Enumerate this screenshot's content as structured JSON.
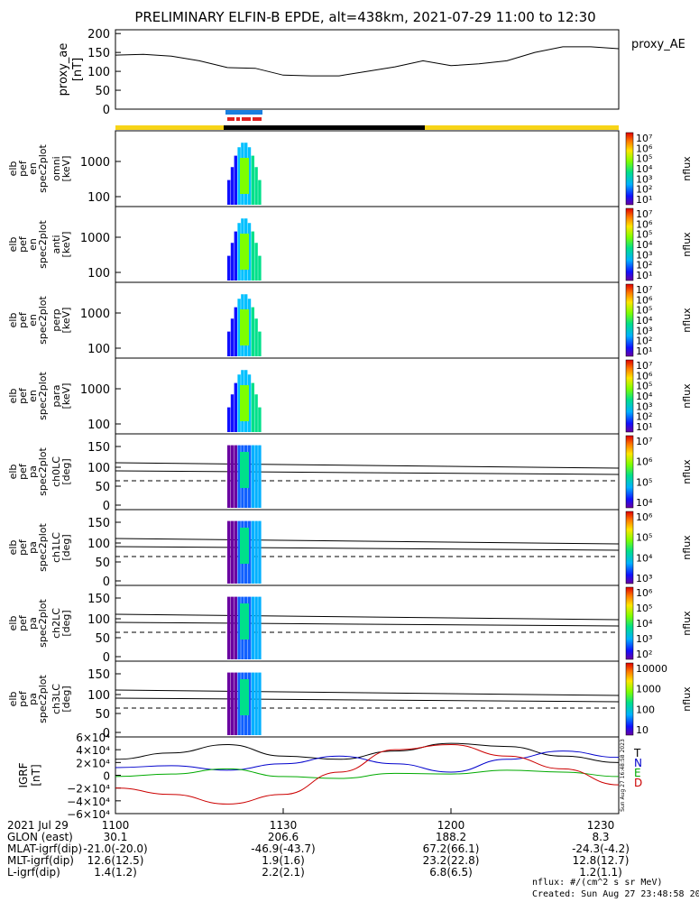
{
  "title": "PRELIMINARY ELFIN-B EPDE, alt=438km, 2021-07-29 11:00 to 12:30",
  "ae_panel": {
    "ylabel_line1": "proxy_ae",
    "ylabel_line2": "[nT]",
    "legend": "proxy_AE",
    "yticks": [
      "200",
      "150",
      "100",
      "50",
      "0"
    ],
    "ylim": [
      0,
      210
    ],
    "color": "#000000"
  },
  "chart_data": [
    {
      "type": "line",
      "title": "",
      "xlabel": "",
      "ylabel": "proxy_ae [nT]",
      "ylim": [
        0,
        210
      ],
      "x_minutes": [
        0,
        5,
        10,
        15,
        20,
        25,
        30,
        35,
        40,
        45,
        50,
        55,
        60,
        65,
        70,
        75,
        80,
        85,
        90
      ],
      "values": [
        143,
        145,
        140,
        128,
        110,
        108,
        90,
        88,
        88,
        100,
        112,
        128,
        115,
        120,
        128,
        150,
        165,
        165,
        160
      ]
    },
    {
      "type": "heatmap",
      "panels": [
        {
          "label": [
            "elb",
            "pef",
            "en",
            "spec2plot",
            "omni",
            "[keV]"
          ],
          "yticks": [
            "1000",
            "100"
          ],
          "cbar": [
            "10⁷",
            "10⁶",
            "10⁵",
            "10⁴",
            "10³",
            "10²",
            "10¹"
          ],
          "unit": "nflux"
        },
        {
          "label": [
            "elb",
            "pef",
            "en",
            "spec2plot",
            "anti",
            "[keV]"
          ],
          "yticks": [
            "1000",
            "100"
          ],
          "cbar": [
            "10⁷",
            "10⁶",
            "10⁵",
            "10⁴",
            "10³",
            "10²",
            "10¹"
          ],
          "unit": "nflux"
        },
        {
          "label": [
            "elb",
            "pef",
            "en",
            "spec2plot",
            "perp",
            "[keV]"
          ],
          "yticks": [
            "1000",
            "100"
          ],
          "cbar": [
            "10⁷",
            "10⁶",
            "10⁵",
            "10⁴",
            "10³",
            "10²",
            "10¹"
          ],
          "unit": "nflux"
        },
        {
          "label": [
            "elb",
            "pef",
            "en",
            "spec2plot",
            "para",
            "[keV]"
          ],
          "yticks": [
            "1000",
            "100"
          ],
          "cbar": [
            "10⁷",
            "10⁶",
            "10⁵",
            "10⁴",
            "10³",
            "10²",
            "10¹"
          ],
          "unit": "nflux"
        },
        {
          "label": [
            "elb",
            "pef",
            "pa",
            "spec2plot",
            "ch0LC",
            "[deg]"
          ],
          "yticks": [
            "150",
            "100",
            "50",
            "0"
          ],
          "cbar": [
            "10⁷",
            "10⁶",
            "10⁵",
            "10⁴"
          ],
          "unit": "nflux"
        },
        {
          "label": [
            "elb",
            "pef",
            "pa",
            "spec2plot",
            "ch1LC",
            "[deg]"
          ],
          "yticks": [
            "150",
            "100",
            "50",
            "0"
          ],
          "cbar": [
            "10⁶",
            "10⁵",
            "10⁴",
            "10³"
          ],
          "unit": "nflux"
        },
        {
          "label": [
            "elb",
            "pef",
            "pa",
            "spec2plot",
            "ch2LC",
            "[deg]"
          ],
          "yticks": [
            "150",
            "100",
            "50",
            "0"
          ],
          "cbar": [
            "10⁶",
            "10⁵",
            "10⁴",
            "10³",
            "10²"
          ],
          "unit": "nflux"
        },
        {
          "label": [
            "elb",
            "pef",
            "pa",
            "spec2plot",
            "ch3LC",
            "[deg]"
          ],
          "yticks": [
            "150",
            "100",
            "50",
            "0"
          ],
          "cbar": [
            "10000",
            "1000",
            "100",
            "10"
          ],
          "unit": "nflux"
        }
      ]
    },
    {
      "type": "line",
      "ylabel": "IGRF [nT]",
      "yticks": [
        "6×10⁴",
        "4×10⁴",
        "2×10⁴",
        "0",
        "−2×10⁴",
        "−4×10⁴",
        "−6×10⁴"
      ],
      "ylim": [
        -60000,
        60000
      ],
      "x_minutes": [
        0,
        10,
        20,
        30,
        40,
        50,
        60,
        70,
        80,
        90
      ],
      "series": [
        {
          "name": "T",
          "color": "#000000",
          "values": [
            25000,
            35000,
            48000,
            30000,
            25000,
            38000,
            50000,
            45000,
            30000,
            20000
          ]
        },
        {
          "name": "N",
          "color": "#0000cc",
          "values": [
            12000,
            15000,
            8000,
            18000,
            30000,
            18000,
            5000,
            25000,
            38000,
            28000
          ]
        },
        {
          "name": "E",
          "color": "#00aa00",
          "values": [
            -2000,
            2000,
            10000,
            -2000,
            -5000,
            3000,
            2000,
            8000,
            5000,
            -2000
          ]
        },
        {
          "name": "D",
          "color": "#cc0000",
          "values": [
            -20000,
            -30000,
            -45000,
            -30000,
            5000,
            40000,
            48000,
            30000,
            10000,
            -15000
          ]
        }
      ]
    }
  ],
  "footer": {
    "rows": [
      {
        "label": "2021 Jul 29",
        "vals": [
          "1100",
          "1130",
          "1200",
          "1230"
        ]
      },
      {
        "label": "GLON (east)",
        "vals": [
          "30.1",
          "206.6",
          "188.2",
          "8.3"
        ]
      },
      {
        "label": "MLAT-igrf(dip)",
        "vals": [
          "-21.0(-20.0)",
          "-46.9(-43.7)",
          "67.2(66.1)",
          "-24.3(-4.2)"
        ]
      },
      {
        "label": "MLT-igrf(dip)",
        "vals": [
          "12.6(12.5)",
          "1.9(1.6)",
          "23.2(22.8)",
          "12.8(12.7)"
        ]
      },
      {
        "label": "L-igrf(dip)",
        "vals": [
          "1.4(1.2)",
          "2.2(2.1)",
          "6.8(6.5)",
          "1.2(1.1)"
        ]
      }
    ],
    "units_note": "nflux: #/(cm^2 s sr MeV)",
    "created": "Created: Sun Aug 27 23:48:58 2023",
    "side_stamp": "Sun Aug 27 16:48:58 2023"
  },
  "colors": {
    "bar_yellow": "#f7d417",
    "bar_black": "#000000",
    "bar_blue": "#1a7fe0",
    "bar_red": "#e02020"
  }
}
